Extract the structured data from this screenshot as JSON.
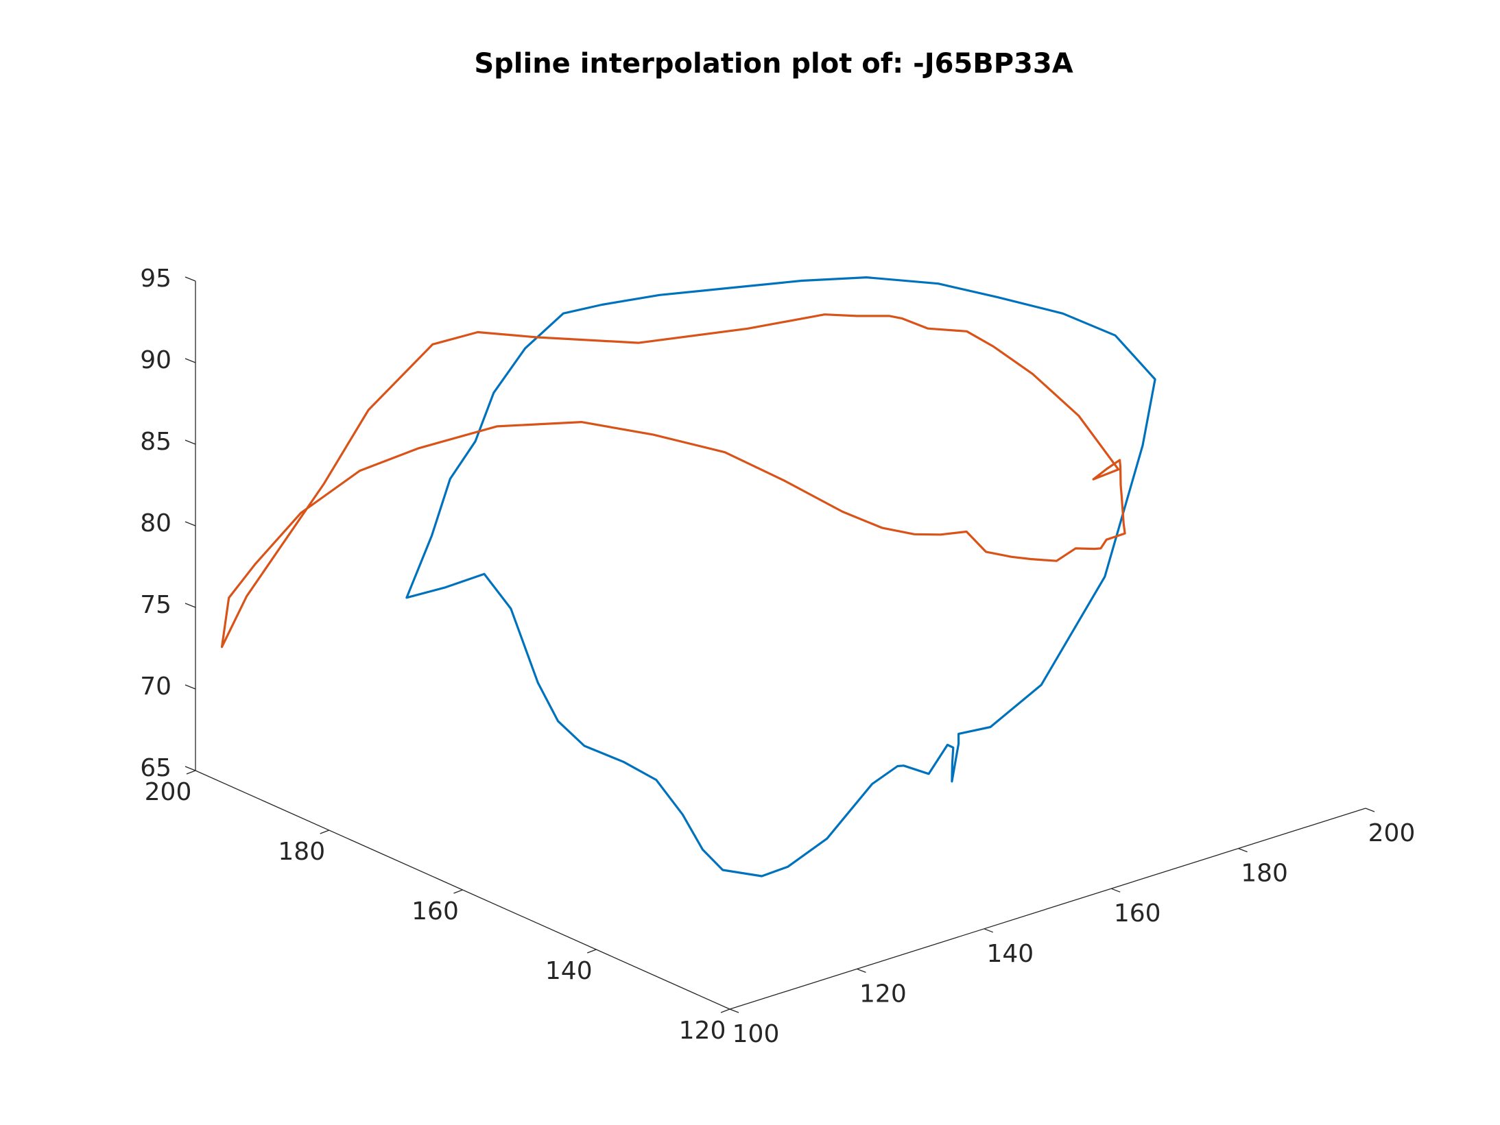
{
  "chart_data": {
    "type": "line3d",
    "title": "Spline interpolation plot of: -J65BP33A",
    "grid": false,
    "x_axis": {
      "label": "",
      "lim": [
        100,
        200
      ],
      "ticks": [
        "100",
        "120",
        "140",
        "160",
        "180",
        "200"
      ]
    },
    "y_axis": {
      "label": "",
      "lim": [
        120,
        200
      ],
      "ticks": [
        "120",
        "140",
        "160",
        "180",
        "200"
      ]
    },
    "z_axis": {
      "label": "",
      "lim": [
        65,
        95
      ],
      "ticks": [
        "65",
        "70",
        "75",
        "80",
        "85",
        "90",
        "95"
      ]
    },
    "series": [
      {
        "color": "#0072bd",
        "points": [
          [
            108,
            176,
            79
          ],
          [
            112,
            174,
            79.5
          ],
          [
            116,
            172,
            80.2
          ],
          [
            116,
            168,
            78.8
          ],
          [
            115,
            163,
            75.3
          ],
          [
            115,
            160,
            73.5
          ],
          [
            116,
            157,
            72.4
          ],
          [
            119,
            154,
            71.6
          ],
          [
            121,
            151,
            70.8
          ],
          [
            122,
            148,
            69.1
          ],
          [
            122,
            145,
            67.5
          ],
          [
            122,
            142,
            66.8
          ],
          [
            125,
            139,
            66.6
          ],
          [
            127,
            137,
            67.3
          ],
          [
            130,
            134,
            69.2
          ],
          [
            135,
            132,
            72.3
          ],
          [
            139,
            132,
            72.9
          ],
          [
            141,
            133,
            72.5
          ],
          [
            146,
            134,
            71.2
          ],
          [
            150,
            135,
            72.3
          ],
          [
            153,
            137,
            71.4
          ],
          [
            156,
            140,
            69.5
          ],
          [
            157,
            141,
            68.1
          ],
          [
            157,
            140,
            70.6
          ],
          [
            157,
            140,
            71.2
          ],
          [
            162,
            140,
            71
          ],
          [
            170,
            140,
            72.6
          ],
          [
            180,
            140,
            78
          ],
          [
            187,
            141,
            85
          ],
          [
            190,
            142,
            88.5
          ],
          [
            189,
            147,
            90.4
          ],
          [
            186,
            152,
            91.2
          ],
          [
            182,
            158,
            91.6
          ],
          [
            179,
            164,
            91.7
          ],
          [
            174,
            170,
            91.6
          ],
          [
            168,
            174,
            91.4
          ],
          [
            160,
            177,
            91.4
          ],
          [
            152,
            180,
            91.4
          ],
          [
            145,
            182,
            91.3
          ],
          [
            140,
            183,
            91.2
          ],
          [
            134,
            183,
            89.8
          ],
          [
            128,
            182,
            88
          ],
          [
            123,
            180,
            86
          ],
          [
            118,
            179,
            84.5
          ],
          [
            113,
            177,
            82
          ],
          [
            108,
            176,
            79
          ]
        ]
      },
      {
        "color": "#d95319",
        "points": [
          [
            100,
            195,
            76.5
          ],
          [
            101,
            192,
            79
          ],
          [
            104,
            188,
            82.5
          ],
          [
            108,
            183,
            85.5
          ],
          [
            112,
            178,
            87.3
          ],
          [
            118,
            172,
            89
          ],
          [
            125,
            166,
            89.5
          ],
          [
            130,
            160,
            89.2
          ],
          [
            136,
            155,
            88.3
          ],
          [
            140,
            150,
            87
          ],
          [
            144,
            145,
            85.5
          ],
          [
            146,
            141,
            85
          ],
          [
            149,
            139,
            84.6
          ],
          [
            151,
            137,
            84.7
          ],
          [
            153,
            135,
            85
          ],
          [
            155,
            134,
            83.7
          ],
          [
            158,
            133,
            83.2
          ],
          [
            161,
            133,
            82.7
          ],
          [
            164,
            132,
            82.4
          ],
          [
            167,
            132,
            82.8
          ],
          [
            170,
            132,
            82.4
          ],
          [
            172,
            133,
            82
          ],
          [
            175,
            135,
            81.8
          ],
          [
            180,
            137,
            81.2
          ],
          [
            184,
            141,
            80.6
          ],
          [
            187,
            144,
            80.5
          ],
          [
            190,
            147,
            80.4
          ],
          [
            193,
            150,
            80.2
          ],
          [
            194,
            151,
            81
          ],
          [
            196,
            153,
            80.8
          ],
          [
            195,
            154,
            80.2
          ],
          [
            195,
            156,
            79.2
          ],
          [
            200,
            157,
            79
          ],
          [
            199,
            162,
            81.5
          ],
          [
            197,
            167,
            83.4
          ],
          [
            194,
            170,
            84.9
          ],
          [
            194,
            174,
            85.1
          ],
          [
            190,
            176,
            85.4
          ],
          [
            187,
            177,
            86.2
          ],
          [
            186,
            178,
            86.3
          ],
          [
            183,
            180,
            86.3
          ],
          [
            179,
            181,
            86.7
          ],
          [
            169,
            183,
            86.7
          ],
          [
            155,
            186,
            87
          ],
          [
            142,
            189,
            88.4
          ],
          [
            136,
            192,
            88.9
          ],
          [
            131,
            194,
            88.4
          ],
          [
            123,
            196,
            85
          ],
          [
            117,
            197,
            81
          ],
          [
            107,
            199,
            75
          ],
          [
            101,
            197,
            73
          ],
          [
            100,
            195,
            76.5
          ]
        ]
      }
    ]
  }
}
